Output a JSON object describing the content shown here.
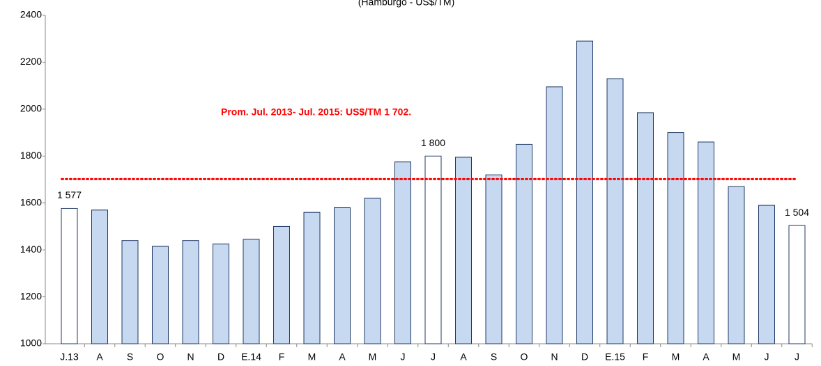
{
  "chart_data": {
    "type": "bar",
    "subtitle": "(Hamburgo - US$/TM)",
    "categories": [
      "J.13",
      "A",
      "S",
      "O",
      "N",
      "D",
      "E.14",
      "F",
      "M",
      "A",
      "M",
      "J",
      "J",
      "A",
      "S",
      "O",
      "N",
      "D",
      "E.15",
      "F",
      "M",
      "A",
      "M",
      "J",
      "J"
    ],
    "values": [
      1577,
      1570,
      1440,
      1415,
      1440,
      1425,
      1445,
      1500,
      1560,
      1580,
      1620,
      1775,
      1800,
      1795,
      1720,
      1850,
      2095,
      2290,
      2130,
      1985,
      1900,
      1860,
      1670,
      1590,
      1504
    ],
    "value_labels": [
      "1 577",
      null,
      null,
      null,
      null,
      null,
      null,
      null,
      null,
      null,
      null,
      null,
      "1 800",
      null,
      null,
      null,
      null,
      null,
      null,
      null,
      null,
      null,
      null,
      null,
      "1 504"
    ],
    "colors": [
      "#ffffff",
      "#c6d9f1",
      "#c6d9f1",
      "#c6d9f1",
      "#c6d9f1",
      "#c6d9f1",
      "#c6d9f1",
      "#c6d9f1",
      "#c6d9f1",
      "#c6d9f1",
      "#c6d9f1",
      "#c6d9f1",
      "#ffffff",
      "#c6d9f1",
      "#c6d9f1",
      "#c6d9f1",
      "#c6d9f1",
      "#c6d9f1",
      "#c6d9f1",
      "#c6d9f1",
      "#c6d9f1",
      "#c6d9f1",
      "#c6d9f1",
      "#c6d9f1",
      "#ffffff"
    ],
    "border_color": "#1f3864",
    "reference_line": {
      "value": 1702,
      "color": "#ff0000",
      "label": "Prom. Jul. 2013- Jul. 2015: US$/TM 1 702."
    },
    "ylim": [
      1000,
      2400
    ],
    "yticks": [
      1000,
      1200,
      1400,
      1600,
      1800,
      2000,
      2200,
      2400
    ]
  }
}
